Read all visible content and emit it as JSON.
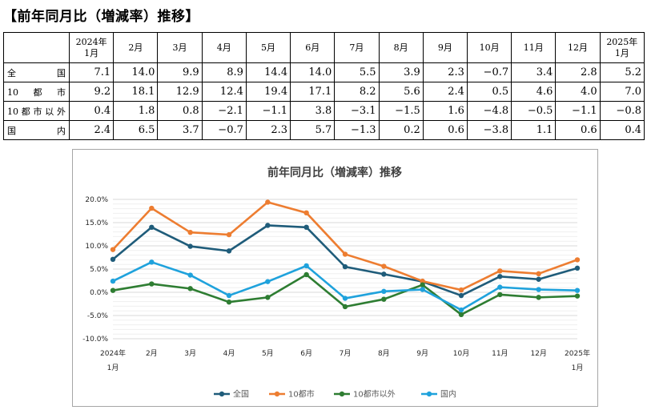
{
  "heading": "【前年同月比（増減率）推移】",
  "table": {
    "columns": [
      {
        "line1": "2024年",
        "line2": "1月"
      },
      {
        "line1": "2月",
        "line2": ""
      },
      {
        "line1": "3月",
        "line2": ""
      },
      {
        "line1": "4月",
        "line2": ""
      },
      {
        "line1": "5月",
        "line2": ""
      },
      {
        "line1": "6月",
        "line2": ""
      },
      {
        "line1": "7月",
        "line2": ""
      },
      {
        "line1": "8月",
        "line2": ""
      },
      {
        "line1": "9月",
        "line2": ""
      },
      {
        "line1": "10月",
        "line2": ""
      },
      {
        "line1": "11月",
        "line2": ""
      },
      {
        "line1": "12月",
        "line2": ""
      },
      {
        "line1": "2025年",
        "line2": "1月"
      }
    ],
    "rows": [
      {
        "label": "全国",
        "values": [
          "7.1",
          "14.0",
          "9.9",
          "8.9",
          "14.4",
          "14.0",
          "5.5",
          "3.9",
          "2.3",
          "−0.7",
          "3.4",
          "2.8",
          "5.2"
        ]
      },
      {
        "label": "10都市",
        "values": [
          "9.2",
          "18.1",
          "12.9",
          "12.4",
          "19.4",
          "17.1",
          "8.2",
          "5.6",
          "2.4",
          "0.5",
          "4.6",
          "4.0",
          "7.0"
        ]
      },
      {
        "label": "10都市以外",
        "values": [
          "0.4",
          "1.8",
          "0.8",
          "−2.1",
          "−1.1",
          "3.8",
          "−3.1",
          "−1.5",
          "1.6",
          "−4.8",
          "−0.5",
          "−1.1",
          "−0.8"
        ]
      },
      {
        "label": "国内",
        "values": [
          "2.4",
          "6.5",
          "3.7",
          "−0.7",
          "2.3",
          "5.7",
          "−1.3",
          "0.2",
          "0.6",
          "−3.8",
          "1.1",
          "0.6",
          "0.4"
        ]
      }
    ]
  },
  "chart_data": {
    "type": "line",
    "title": "前年同月比（増減率）推移",
    "categories": [
      {
        "line1": "2024年",
        "line2": "1月"
      },
      {
        "line1": "2月",
        "line2": ""
      },
      {
        "line1": "3月",
        "line2": ""
      },
      {
        "line1": "4月",
        "line2": ""
      },
      {
        "line1": "5月",
        "line2": ""
      },
      {
        "line1": "6月",
        "line2": ""
      },
      {
        "line1": "7月",
        "line2": ""
      },
      {
        "line1": "8月",
        "line2": ""
      },
      {
        "line1": "9月",
        "line2": ""
      },
      {
        "line1": "10月",
        "line2": ""
      },
      {
        "line1": "11月",
        "line2": ""
      },
      {
        "line1": "12月",
        "line2": ""
      },
      {
        "line1": "2025年",
        "line2": "1月"
      }
    ],
    "ylim": [
      -10,
      20
    ],
    "yticks": [
      -10,
      -5,
      0,
      5,
      10,
      15,
      20
    ],
    "ytick_labels": [
      "-10.0%",
      "-5.0%",
      "0.0%",
      "5.0%",
      "10.0%",
      "15.0%",
      "20.0%"
    ],
    "grid": true,
    "legend_position": "bottom",
    "series": [
      {
        "name": "全国",
        "color": "#1f5c7a",
        "values": [
          7.1,
          14.0,
          9.9,
          8.9,
          14.4,
          14.0,
          5.5,
          3.9,
          2.3,
          -0.7,
          3.4,
          2.8,
          5.2
        ]
      },
      {
        "name": "10都市",
        "color": "#ed7d31",
        "values": [
          9.2,
          18.1,
          12.9,
          12.4,
          19.4,
          17.1,
          8.2,
          5.6,
          2.4,
          0.5,
          4.6,
          4.0,
          7.0
        ]
      },
      {
        "name": "10都市以外",
        "color": "#2e7d32",
        "values": [
          0.4,
          1.8,
          0.8,
          -2.1,
          -1.1,
          3.8,
          -3.1,
          -1.5,
          1.6,
          -4.8,
          -0.5,
          -1.1,
          -0.8
        ]
      },
      {
        "name": "国内",
        "color": "#1fa2dc",
        "values": [
          2.4,
          6.5,
          3.7,
          -0.7,
          2.3,
          5.7,
          -1.3,
          0.2,
          0.6,
          -3.8,
          1.1,
          0.6,
          0.4
        ]
      }
    ]
  }
}
